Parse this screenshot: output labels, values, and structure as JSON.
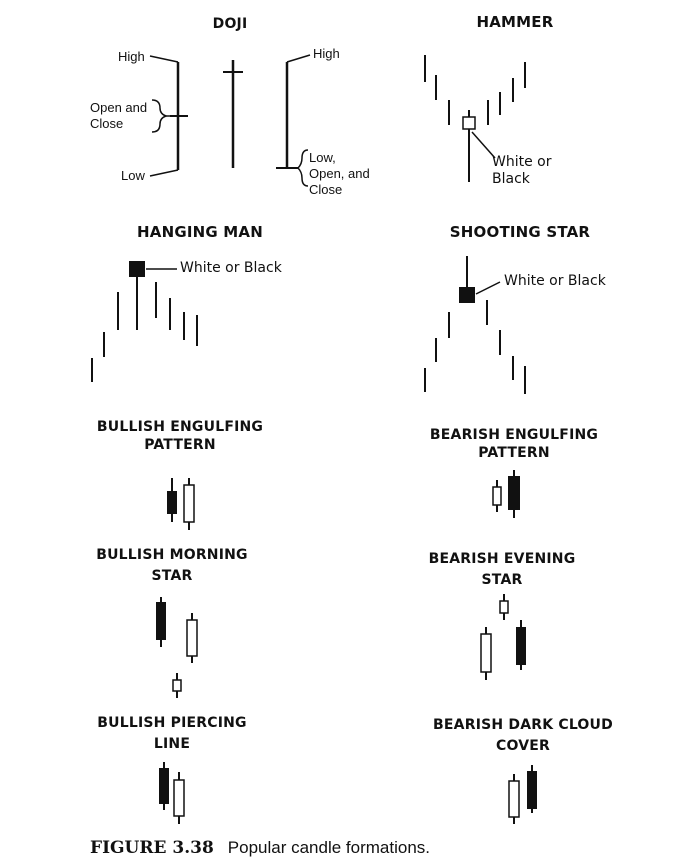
{
  "titles": {
    "doji": "DOJI",
    "hammer": "HAMMER",
    "hanging_man": "HANGING MAN",
    "shooting_star": "SHOOTING STAR",
    "bullish_engulfing_1": "BULLISH ENGULFING",
    "bullish_engulfing_2": "PATTERN",
    "bearish_engulfing_1": "BEARISH ENGULFING",
    "bearish_engulfing_2": "PATTERN",
    "bullish_morning_1": "BULLISH MORNING",
    "bullish_morning_2": "STAR",
    "bearish_evening_1": "BEARISH EVENING",
    "bearish_evening_2": "STAR",
    "bullish_piercing_1": "BULLISH PIERCING",
    "bullish_piercing_2": "LINE",
    "bearish_dark_1": "BEARISH DARK CLOUD",
    "bearish_dark_2": "COVER"
  },
  "doji_labels": {
    "high_left": "High",
    "open_close_1": "Open and",
    "open_close_2": "Close",
    "low_left": "Low",
    "high_right": "High",
    "low_open_close_1": "Low,",
    "low_open_close_2": "Open, and",
    "low_open_close_3": "Close"
  },
  "hammer_label_1": "White or",
  "hammer_label_2": "Black",
  "hanging_man_label": "White or Black",
  "shooting_star_label": "White or Black",
  "caption": {
    "number": "FIGURE 3.38",
    "text": "Popular candle formations."
  }
}
